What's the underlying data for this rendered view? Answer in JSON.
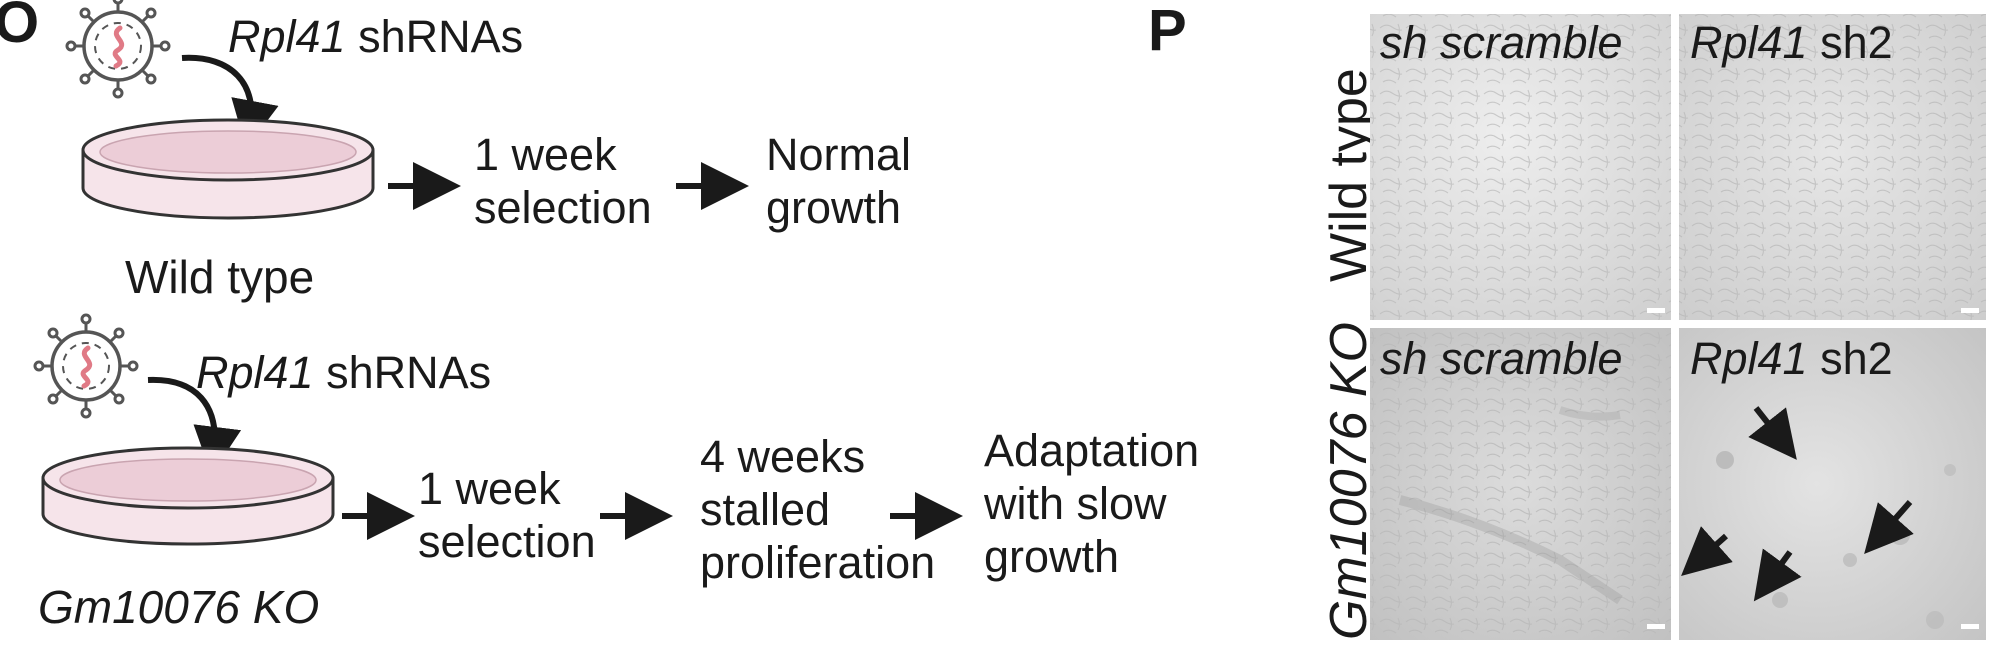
{
  "panel_o": {
    "letter": "O",
    "row1": {
      "shrna_gene": "Rpl41",
      "shrna_word": " shRNAs",
      "caption": "Wild type",
      "step1": [
        "1 week",
        "selection"
      ],
      "step2": [
        "Normal",
        "growth"
      ]
    },
    "row2": {
      "shrna_gene": "Rpl41",
      "shrna_word": " shRNAs",
      "caption": "Gm10076 KO",
      "step1": [
        "1 week",
        "selection"
      ],
      "step2": [
        "4 weeks",
        "stalled",
        "proliferation"
      ],
      "step3": [
        "Adaptation",
        "with slow",
        "growth"
      ]
    }
  },
  "panel_p": {
    "letter": "P",
    "row_labels": [
      "Wild type",
      "Gm10076 KO"
    ],
    "tiles": [
      {
        "label_italic": "sh scramble",
        "label_plain": ""
      },
      {
        "label_italic": "Rpl41",
        "label_plain": " sh2"
      },
      {
        "label_italic": "sh scramble",
        "label_plain": ""
      },
      {
        "label_italic": "Rpl41",
        "label_plain": " sh2"
      }
    ]
  },
  "colors": {
    "ink": "#1a1a1a",
    "dish_fill": "#f6e4ea",
    "dish_liquid": "#eccdd7",
    "rna": "#e07a86",
    "micrograph": "#d6d6d6"
  }
}
